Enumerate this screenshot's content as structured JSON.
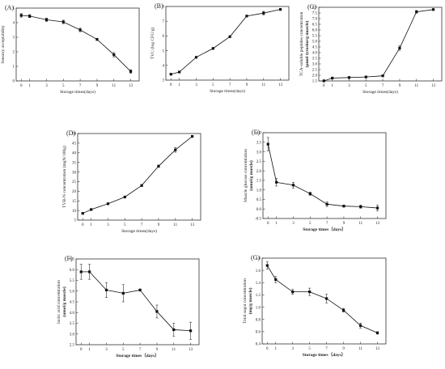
{
  "chart_data": [
    {
      "panel": "(A)",
      "type": "line",
      "xlabel": "Storage times(days)",
      "ylabel": "Sensory acceptability",
      "x": [
        0,
        1,
        3,
        5,
        7,
        9,
        11,
        13
      ],
      "y": [
        4.5,
        4.45,
        4.2,
        4.05,
        3.5,
        2.85,
        1.8,
        0.65
      ],
      "err": [
        0.12,
        0.1,
        0.12,
        0.12,
        0.12,
        0.07,
        0.15,
        0.12
      ],
      "xlim": [
        -0.6,
        14
      ],
      "ylim": [
        0,
        5
      ],
      "xticks": [
        0,
        1,
        3,
        5,
        7,
        9,
        11,
        13
      ],
      "yticks": [
        0,
        1,
        2,
        3,
        4,
        5
      ],
      "ytick_labels": [
        "0",
        "1",
        "2",
        "3",
        "4",
        "5"
      ],
      "marker": "square",
      "color": "#111111"
    },
    {
      "panel": "(B)",
      "type": "line",
      "xlabel": "Storage times(days)",
      "ylabel": "TVC (log CFU/g)",
      "x": [
        0,
        1,
        3,
        5,
        7,
        9,
        11,
        13
      ],
      "y": [
        3.4,
        3.55,
        4.55,
        5.15,
        5.95,
        7.35,
        7.55,
        7.8
      ],
      "err": [
        0.05,
        0.06,
        0.05,
        0.07,
        0.05,
        0.05,
        0.12,
        0.05
      ],
      "xlim": [
        -0.6,
        14
      ],
      "ylim": [
        3,
        8
      ],
      "xticks": [
        0,
        1,
        3,
        5,
        7,
        9,
        11,
        13
      ],
      "yticks": [
        3,
        4,
        5,
        6,
        7,
        8
      ],
      "ytick_labels": [
        "3",
        "4",
        "5",
        "6",
        "7",
        "8"
      ],
      "marker": "square",
      "color": "#111111"
    },
    {
      "panel": "(C)",
      "type": "line",
      "xlabel": "Storage times(days)",
      "ylabel": "TCA-soluble peptides concentration",
      "ylabel_bold": "(μmol tyrosine/g muscle)",
      "x": [
        0,
        1,
        3,
        5,
        7,
        9,
        11,
        13
      ],
      "y": [
        1.5,
        1.75,
        1.8,
        1.85,
        1.95,
        4.4,
        7.6,
        7.8
      ],
      "err": [
        0.05,
        0.05,
        0.08,
        0.06,
        0.05,
        0.2,
        0.12,
        0.05
      ],
      "xlim": [
        -0.6,
        14
      ],
      "ylim": [
        1.5,
        8.0
      ],
      "xticks": [
        0,
        1,
        3,
        5,
        7,
        9,
        11,
        13
      ],
      "yticks": [
        1.5,
        2.0,
        2.5,
        3.0,
        3.5,
        4.0,
        4.5,
        5.0,
        5.5,
        6.0,
        6.5,
        7.0,
        7.5,
        8.0
      ],
      "ytick_labels": [
        "1.5",
        "2.0",
        "2.5",
        "3.0",
        "3.5",
        "4.0",
        "4.5",
        "5.0",
        "5.5",
        "6.0",
        "6.5",
        "7.0",
        "7.5",
        "8.0"
      ],
      "marker": "square",
      "color": "#111111"
    },
    {
      "panel": "(D)",
      "type": "line",
      "xlabel": "Storage times(days)",
      "ylabel": "TVB-N concentration (mgN/100g)",
      "x": [
        0,
        1,
        3,
        5,
        7,
        9,
        11,
        13
      ],
      "y": [
        8.5,
        10.5,
        13.5,
        17,
        23,
        33,
        41.5,
        48.5
      ],
      "err": [
        0.4,
        0.4,
        0.4,
        0.5,
        0.5,
        0.6,
        1.2,
        0.5
      ],
      "xlim": [
        -0.6,
        14
      ],
      "ylim": [
        5,
        50
      ],
      "xticks": [
        0,
        1,
        3,
        5,
        7,
        9,
        11,
        13
      ],
      "yticks": [
        5,
        10,
        15,
        20,
        25,
        30,
        35,
        40,
        45,
        50
      ],
      "ytick_labels": [
        "5",
        "10",
        "15",
        "20",
        "25",
        "30",
        "35",
        "40",
        "45",
        "50"
      ],
      "marker": "square",
      "color": "#111111"
    },
    {
      "panel": "(E)",
      "type": "line",
      "xlabel": "Storage times（days）",
      "xlabel_bold": true,
      "ylabel": "Muscle glucose concentration",
      "ylabel_bold": "(umol/g muscle)",
      "x": [
        0,
        1,
        3,
        5,
        7,
        9,
        11,
        13
      ],
      "y": [
        3.4,
        1.4,
        1.25,
        0.8,
        0.25,
        0.15,
        0.12,
        0.05
      ],
      "err": [
        0.35,
        0.2,
        0.15,
        0.08,
        0.12,
        0.05,
        0.08,
        0.15
      ],
      "xlim": [
        -0.6,
        14
      ],
      "ylim": [
        -0.5,
        4.0
      ],
      "xticks": [
        0,
        1,
        3,
        5,
        7,
        9,
        11,
        13
      ],
      "yticks": [
        -0.5,
        0.0,
        0.5,
        1.0,
        1.5,
        2.0,
        2.5,
        3.0,
        3.5,
        4.0
      ],
      "ytick_labels": [
        "-0.5",
        "0.0",
        "0.5",
        "1.0",
        "1.5",
        "2.0",
        "2.5",
        "3.0",
        "3.5",
        "4.0"
      ],
      "marker": "square",
      "color": "#111111"
    },
    {
      "panel": "(F)",
      "type": "line",
      "xlabel": "Storage times（days）",
      "xlabel_bold": true,
      "ylabel": "lactic acid concentration",
      "ylabel_bold": "(umol/g muscle)",
      "x": [
        0,
        1,
        3,
        5,
        7,
        9,
        11,
        13
      ],
      "y": [
        5.9,
        5.9,
        5.05,
        4.9,
        5.05,
        4.05,
        3.2,
        3.15
      ],
      "err": [
        0.35,
        0.35,
        0.35,
        0.4,
        0.05,
        0.3,
        0.3,
        0.4
      ],
      "xlim": [
        -0.6,
        14
      ],
      "ylim": [
        2.5,
        6.5
      ],
      "xticks": [
        0,
        1,
        3,
        5,
        7,
        9,
        11,
        13
      ],
      "yticks": [
        2.5,
        3.0,
        3.5,
        4.0,
        4.5,
        5.0,
        5.5,
        6.0,
        6.5
      ],
      "ytick_labels": [
        "2.5",
        "3.0",
        "3.5",
        "4.0",
        "4.5",
        "5.0",
        "5.5",
        "6.0",
        "6.5"
      ],
      "marker": "square",
      "color": "#111111"
    },
    {
      "panel": "(G)",
      "type": "line",
      "xlabel": "Storage times（days）",
      "xlabel_bold": true,
      "ylabel": "Total sugar concentration",
      "ylabel_bold": "(mg/g muscle)",
      "x": [
        0,
        1,
        3,
        5,
        7,
        9,
        11,
        13
      ],
      "y": [
        1.68,
        1.45,
        1.25,
        1.25,
        1.14,
        0.95,
        0.7,
        0.58
      ],
      "err": [
        0.06,
        0.05,
        0.04,
        0.06,
        0.07,
        0.03,
        0.04,
        0.02
      ],
      "xlim": [
        -0.6,
        14
      ],
      "ylim": [
        0.4,
        1.8
      ],
      "xticks": [
        0,
        1,
        3,
        5,
        7,
        9,
        11,
        13
      ],
      "yticks": [
        0.4,
        0.6,
        0.8,
        1.0,
        1.2,
        1.4,
        1.6,
        1.8
      ],
      "ytick_labels": [
        "0.4",
        "0.6",
        "0.8",
        "1.0",
        "1.2",
        "1.4",
        "1.6",
        "1.8"
      ],
      "marker": "square",
      "color": "#111111"
    }
  ]
}
